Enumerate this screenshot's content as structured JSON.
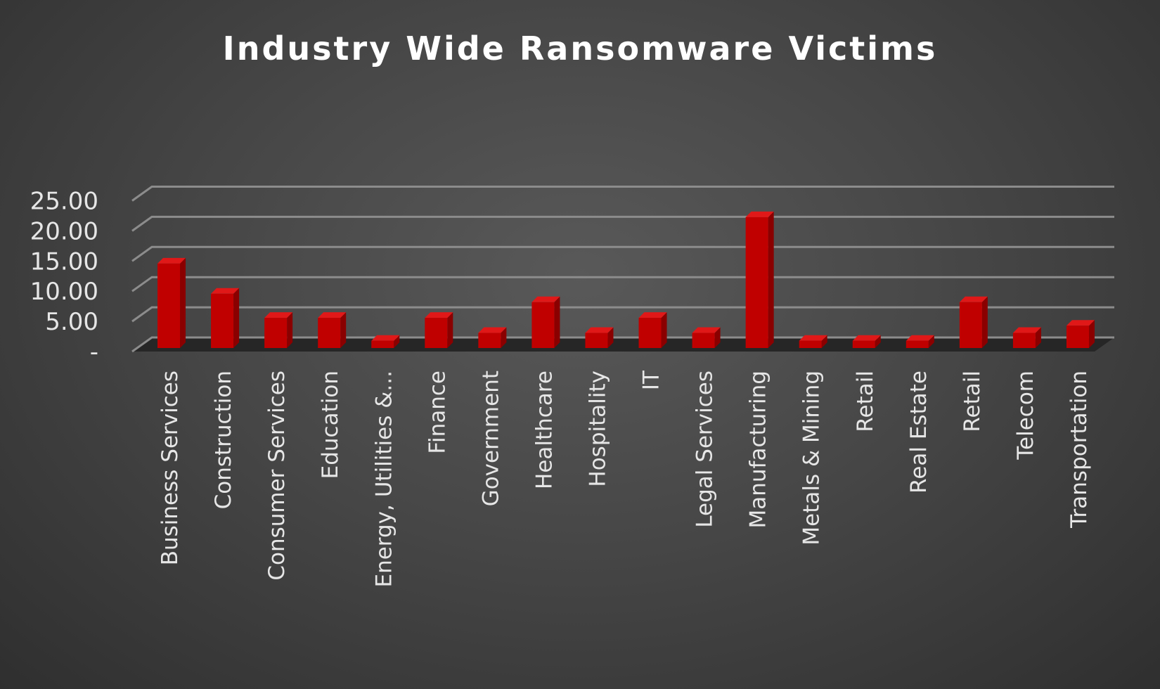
{
  "chart_data": {
    "type": "bar",
    "title": "Industry Wide Ransomware Victims",
    "xlabel": "",
    "ylabel": "",
    "ylim": [
      0,
      25
    ],
    "yticks": [
      {
        "value": 0,
        "label": "-"
      },
      {
        "value": 5,
        "label": "5.00"
      },
      {
        "value": 10,
        "label": "10.00"
      },
      {
        "value": 15,
        "label": "15.00"
      },
      {
        "value": 20,
        "label": "20.00"
      },
      {
        "value": 25,
        "label": "25.00"
      }
    ],
    "grid": true,
    "legend": "none",
    "categories": [
      "Business Services",
      "Construction",
      "Consumer Services",
      "Education",
      "Energy, Utilities &...",
      "Finance",
      "Government",
      "Healthcare",
      "Hospitality",
      "IT",
      "Legal Services",
      "Manufacturing",
      "Metals & Mining",
      "Retail",
      "Real Estate",
      "Retail",
      "Telecom",
      "Transportation"
    ],
    "values": [
      14.0,
      9.0,
      5.0,
      5.0,
      1.2,
      5.0,
      2.5,
      7.6,
      2.5,
      5.0,
      2.5,
      21.7,
      1.2,
      1.2,
      1.2,
      7.6,
      2.5,
      3.7
    ]
  },
  "colors": {
    "bar_front": "#c00000",
    "bar_side": "#8a0000",
    "bar_top": "#e01818",
    "grid": "#8c8c8c",
    "floor": "#262626",
    "text": "#e6e6e6",
    "title": "#ffffff"
  }
}
